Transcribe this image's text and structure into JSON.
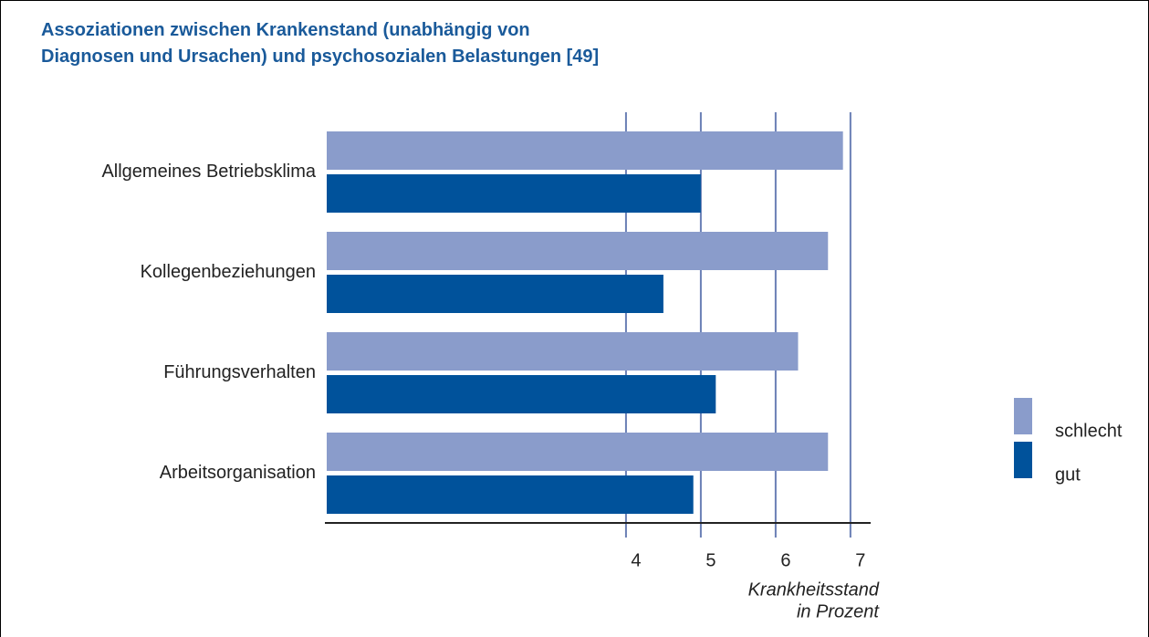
{
  "chart_data": {
    "type": "barh",
    "title": "Assoziationen zwischen Krankenstand (unabhängig von Diagnosen und Ursachen) und psychosozialen Belastungen [49]",
    "categories": [
      "Allgemeines Betriebsklima",
      "Kollegenbeziehungen",
      "Führungsverhalten",
      "Arbeitsorganisation"
    ],
    "series": [
      {
        "name": "schlecht",
        "color": "#8a9ccb",
        "values": [
          6.9,
          6.7,
          6.3,
          6.7
        ]
      },
      {
        "name": "gut",
        "color": "#00529b",
        "values": [
          5.0,
          4.5,
          5.2,
          4.9
        ]
      }
    ],
    "xlabel": [
      "Krankheitsstand",
      "in Prozent"
    ],
    "xlim": [
      0,
      7.27
    ],
    "xticks": [
      4,
      5,
      6,
      7
    ],
    "grid": true,
    "legend": "right"
  }
}
